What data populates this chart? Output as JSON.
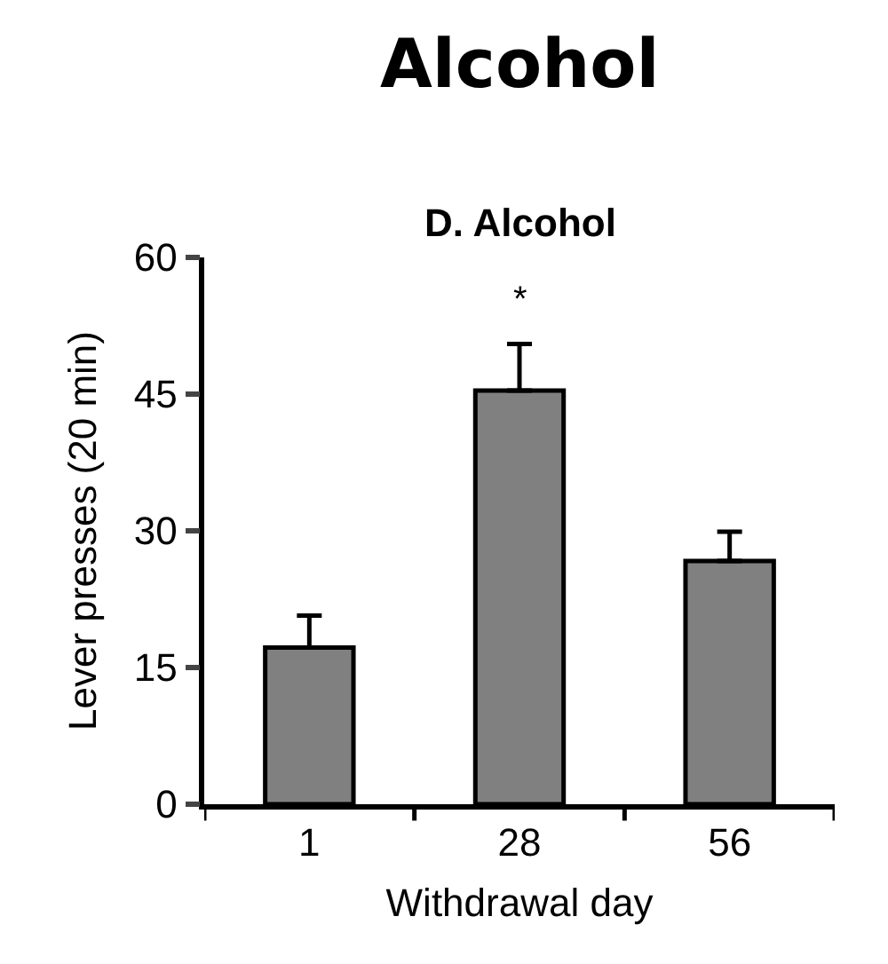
{
  "chart_data": {
    "type": "bar",
    "title": "Alcohol",
    "subtitle": "D. Alcohol",
    "xlabel": "Withdrawal day",
    "ylabel": "Lever presses (20 min)",
    "categories": [
      "1",
      "28",
      "56"
    ],
    "values": [
      17.2,
      45.4,
      26.7
    ],
    "errors": [
      [
        17.2,
        20.7
      ],
      [
        45.4,
        50.5
      ],
      [
        26.7,
        29.9
      ]
    ],
    "color": "#808080",
    "ylim": [
      0,
      60
    ],
    "yticks": [
      0,
      15,
      30,
      45,
      60
    ],
    "annotations": [
      "*"
    ]
  }
}
